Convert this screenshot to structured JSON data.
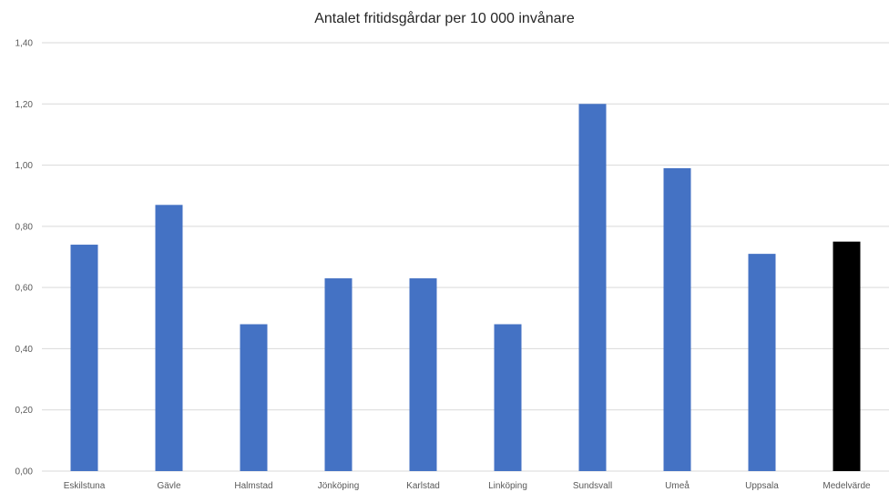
{
  "chart_data": {
    "type": "bar",
    "title": "Antalet fritidsgårdar per 10 000 invånare",
    "xlabel": "",
    "ylabel": "",
    "categories": [
      "Eskilstuna",
      "Gävle",
      "Halmstad",
      "Jönköping",
      "Karlstad",
      "Linköping",
      "Sundsvall",
      "Umeå",
      "Uppsala",
      "Medelvärde"
    ],
    "values": [
      0.74,
      0.87,
      0.48,
      0.63,
      0.63,
      0.48,
      1.2,
      0.99,
      0.71,
      0.75
    ],
    "ylim": [
      0,
      1.4
    ],
    "yticks": [
      "0,00",
      "0,20",
      "0,40",
      "0,60",
      "0,80",
      "1,00",
      "1,20",
      "1,40"
    ],
    "grid": true,
    "legend": "none",
    "colors": {
      "bar": "#4472C4",
      "highlight_bar": "#000000",
      "highlight_category": "Medelvärde",
      "gridline": "#D9D9D9"
    }
  }
}
